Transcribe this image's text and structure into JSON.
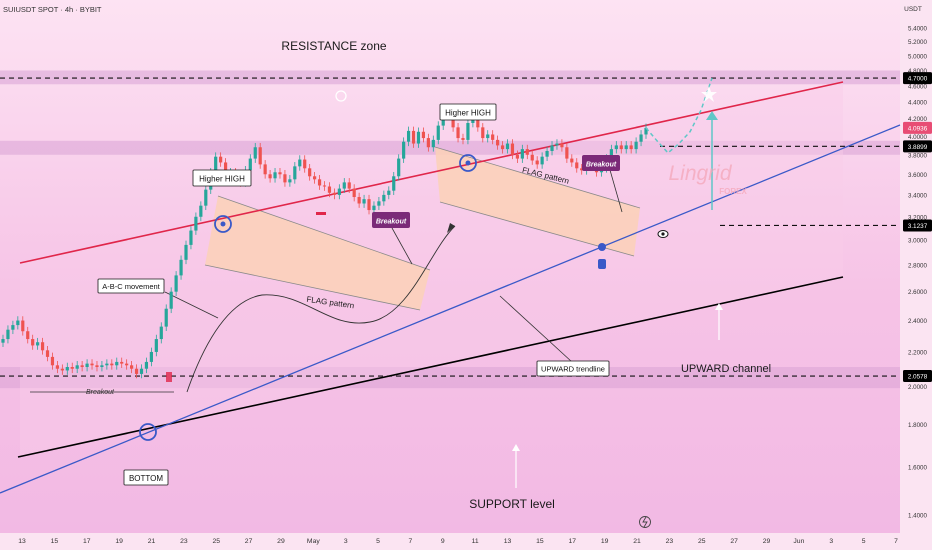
{
  "header": {
    "symbol": "SUIUSDT SPOT · 4h · BYBIT",
    "currency": "USDT"
  },
  "watermark": {
    "brand": "Lingrid",
    "sub": "FOREX"
  },
  "colors": {
    "background": "#f7c6e6",
    "zone": "#d9a3d6",
    "channel_top": "#e0264a",
    "channel_bottom": "#000000",
    "trendline": "#3a59c8",
    "candle_up": "#26a69a",
    "candle_down": "#ef5350",
    "flag_fill": "#fbd1b7",
    "price_tag": "#000000",
    "price_tag_current": "#e84c74",
    "projection": "#5fc7c7"
  },
  "annotations": {
    "resistance_zone": "RESISTANCE zone",
    "support_level": "SUPPORT level",
    "upward_channel": "UPWARD channel",
    "upward_trendline": "UPWARD trendline",
    "abc_movement": "A-B-C movement",
    "flag_pattern_1": "FLAG pattern",
    "flag_pattern_2": "FLAG pattern",
    "higher_high_1": "Higher HIGH",
    "higher_high_2": "Higher HIGH",
    "breakout_1": "Breakout",
    "breakout_2": "Breakout",
    "breakout_3": "Breakout",
    "bottom": "BOTTOM"
  },
  "chart_data": {
    "type": "candlestick",
    "title": "SUIUSDT SPOT · 4h · BYBIT",
    "y_axis": {
      "unit": "USDT",
      "scale": "log",
      "ticks": [
        5.4,
        5.2,
        5.0,
        4.8,
        4.6,
        4.4,
        4.2,
        4.0,
        3.8,
        3.6,
        3.4,
        3.2,
        3.0,
        2.8,
        2.6,
        2.4,
        2.2,
        2.0,
        1.8,
        1.6,
        1.4
      ],
      "tick_labels": [
        "5.4000",
        "5.2000",
        "5.0000",
        "4.8000",
        "4.6000",
        "4.4000",
        "4.2000",
        "4.0000",
        "3.8000",
        "3.6000",
        "3.4000",
        "3.2000",
        "3.0000",
        "2.8000",
        "2.6000",
        "2.4000",
        "2.2000",
        "2.0000",
        "1.8000",
        "1.6000",
        "1.4000"
      ]
    },
    "x_axis": {
      "tick_labels": [
        "13",
        "15",
        "17",
        "19",
        "21",
        "23",
        "25",
        "27",
        "29",
        "May",
        "3",
        "5",
        "7",
        "9",
        "11",
        "13",
        "15",
        "17",
        "19",
        "21",
        "23",
        "25",
        "27",
        "29",
        "Jun",
        "3",
        "5",
        "7"
      ]
    },
    "price_levels": [
      {
        "label": "4.7000",
        "value": 4.7,
        "kind": "resistance"
      },
      {
        "label": "4.0936",
        "value": 4.0936,
        "kind": "current"
      },
      {
        "label": "3.8899",
        "value": 3.8899,
        "kind": "level"
      },
      {
        "label": "3.1237",
        "value": 3.1237,
        "kind": "level"
      },
      {
        "label": "2.0578",
        "value": 2.0578,
        "kind": "support"
      }
    ],
    "zones": [
      {
        "name": "RESISTANCE zone",
        "from": 4.62,
        "to": 4.8
      },
      {
        "name": "SUPPORT level",
        "from": 1.99,
        "to": 2.11
      },
      {
        "name": "3.8899 zone",
        "from": 3.8,
        "to": 3.95
      }
    ],
    "closes": [
      2.28,
      2.34,
      2.37,
      2.4,
      2.33,
      2.28,
      2.24,
      2.26,
      2.21,
      2.17,
      2.12,
      2.1,
      2.09,
      2.11,
      2.1,
      2.12,
      2.11,
      2.13,
      2.12,
      2.11,
      2.12,
      2.13,
      2.12,
      2.14,
      2.13,
      2.12,
      2.1,
      2.07,
      2.1,
      2.14,
      2.2,
      2.28,
      2.36,
      2.48,
      2.6,
      2.72,
      2.84,
      2.96,
      3.08,
      3.2,
      3.3,
      3.45,
      3.62,
      3.78,
      3.72,
      3.55,
      3.62,
      3.58,
      3.52,
      3.64,
      3.76,
      3.88,
      3.7,
      3.6,
      3.56,
      3.62,
      3.6,
      3.52,
      3.55,
      3.68,
      3.75,
      3.66,
      3.58,
      3.55,
      3.49,
      3.48,
      3.42,
      3.4,
      3.46,
      3.52,
      3.46,
      3.38,
      3.32,
      3.36,
      3.26,
      3.3,
      3.34,
      3.4,
      3.44,
      3.58,
      3.76,
      3.94,
      4.06,
      3.92,
      4.05,
      3.98,
      3.88,
      3.96,
      4.12,
      4.24,
      4.3,
      4.1,
      3.98,
      3.96,
      4.15,
      4.28,
      4.1,
      3.98,
      4.02,
      3.96,
      3.9,
      3.86,
      3.92,
      3.8,
      3.76,
      3.86,
      3.8,
      3.74,
      3.7,
      3.78,
      3.84,
      3.9,
      3.92,
      3.88,
      3.76,
      3.72,
      3.66,
      3.64,
      3.72,
      3.7,
      3.62,
      3.66,
      3.76,
      3.86,
      3.9,
      3.86,
      3.9,
      3.86,
      3.94,
      4.02,
      4.0936
    ],
    "projection": [
      4.0936,
      3.95,
      3.82,
      3.92,
      4.05,
      4.3,
      4.7
    ]
  }
}
